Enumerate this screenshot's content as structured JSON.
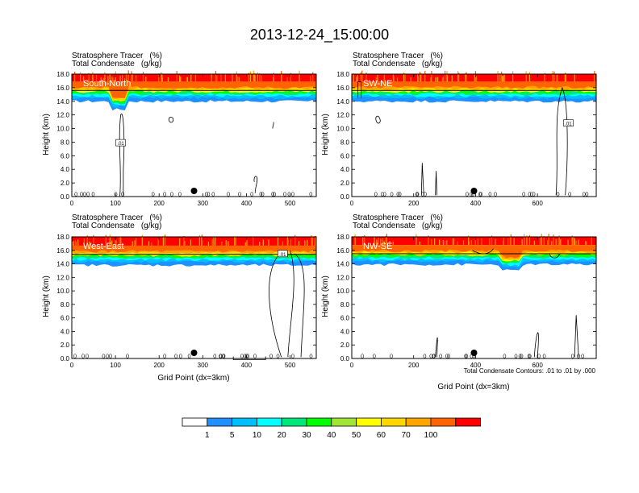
{
  "title": "2013-12-24_15:00:00",
  "fields": {
    "tracer_label": "Stratosphere Tracer",
    "tracer_unit": "(%)",
    "condensate_label": "Total Condensate",
    "condensate_unit": "(g/kg)"
  },
  "ylabel": "Height (km)",
  "xlabel": "Grid Point (dx=3km)",
  "contour_note": "Total Condensate Contours: .01 to .01 by .000",
  "y_ticks": [
    "0.0",
    "2.0",
    "4.0",
    "6.0",
    "8.0",
    "10.0",
    "12.0",
    "14.0",
    "16.0",
    "18.0"
  ],
  "colorbar": {
    "labels": [
      "1",
      "5",
      "10",
      "20",
      "30",
      "40",
      "50",
      "60",
      "70",
      "100"
    ],
    "colors": [
      "#ffffff",
      "#1e90ff",
      "#00bfff",
      "#00ffff",
      "#00e87a",
      "#00ff00",
      "#a0e632",
      "#ffff00",
      "#ffd700",
      "#ffa500",
      "#ff6400",
      "#ff0000"
    ]
  },
  "chart_data": [
    {
      "type": "heatmap",
      "panel": "South-North",
      "xlim": [
        0,
        560
      ],
      "ylim": [
        0,
        18
      ],
      "x_ticks": [
        "0",
        "100",
        "200",
        "300",
        "400",
        "500"
      ],
      "marker_x": 280,
      "tropopause_km": 15.6,
      "contour_labels": [
        {
          "text": ".01",
          "x": 112,
          "y": 7.8
        }
      ]
    },
    {
      "type": "heatmap",
      "panel": "SW-NE",
      "xlim": [
        0,
        790
      ],
      "ylim": [
        0,
        18
      ],
      "x_ticks": [
        "0",
        "200",
        "400",
        "600"
      ],
      "marker_x": 395,
      "tropopause_km": 15.6,
      "contour_labels": [
        {
          "text": ".01",
          "x": 700,
          "y": 10.7
        }
      ]
    },
    {
      "type": "heatmap",
      "panel": "West-East",
      "xlim": [
        0,
        560
      ],
      "ylim": [
        0,
        18
      ],
      "x_ticks": [
        "0",
        "100",
        "200",
        "300",
        "400",
        "500"
      ],
      "marker_x": 280,
      "tropopause_km": 15.4,
      "contour_labels": [
        {
          "text": ".01",
          "x": 483,
          "y": 15.4
        }
      ]
    },
    {
      "type": "heatmap",
      "panel": "NW-SE",
      "xlim": [
        0,
        790
      ],
      "ylim": [
        0,
        18
      ],
      "x_ticks": [
        "0",
        "200",
        "400",
        "600"
      ],
      "marker_x": 395,
      "tropopause_km": 15.5,
      "contour_labels": []
    }
  ]
}
